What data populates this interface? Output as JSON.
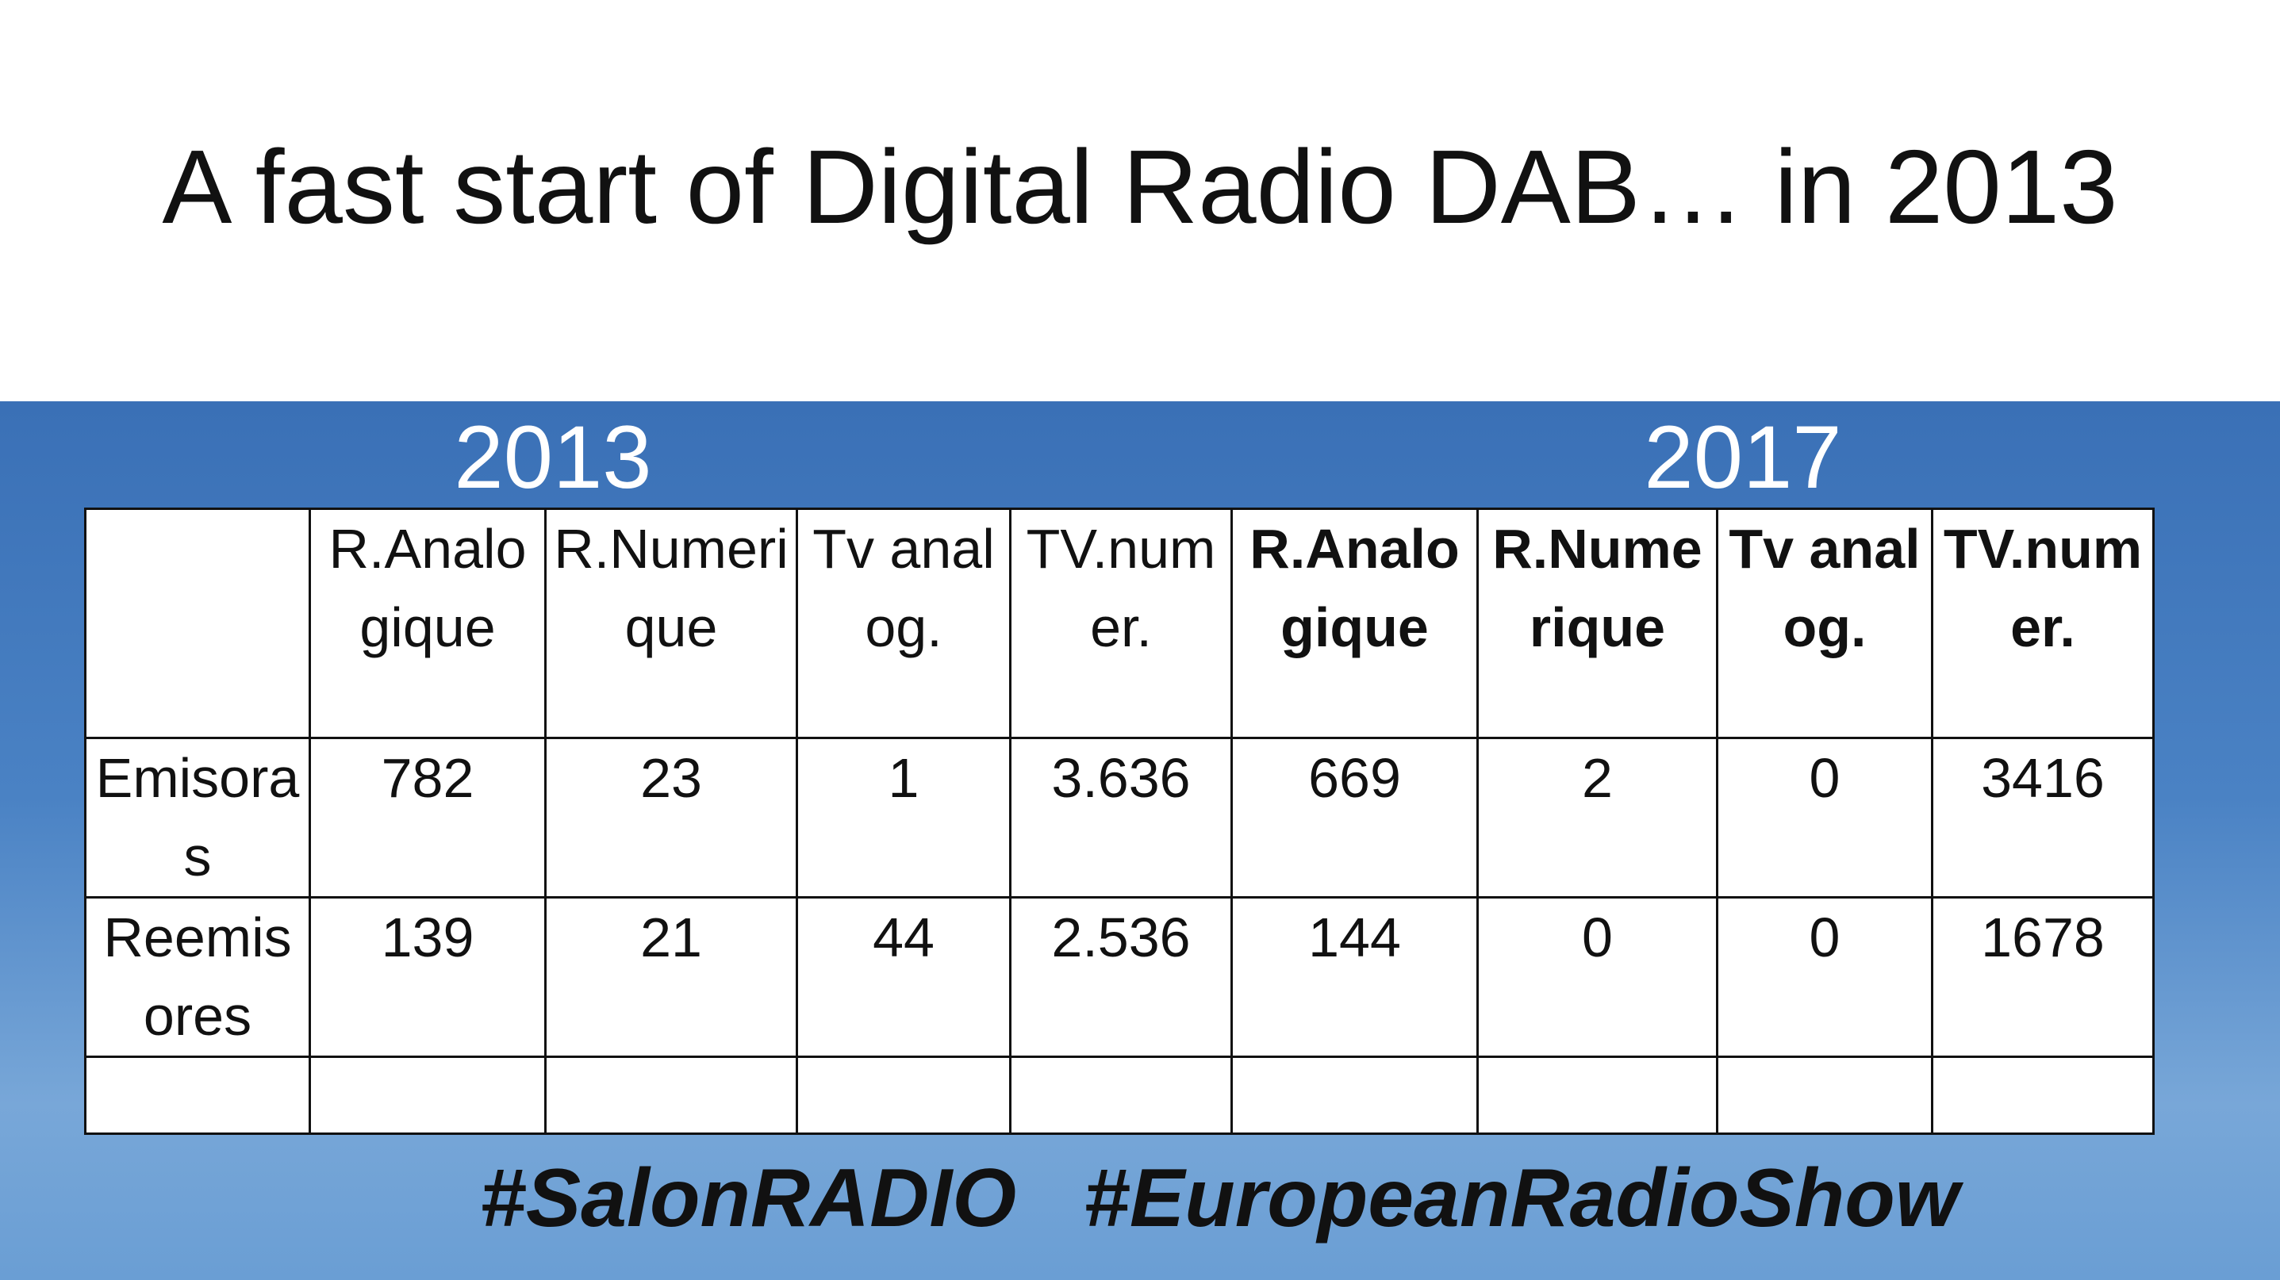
{
  "title": "A fast start of Digital Radio DAB… in 2013",
  "years": [
    "2013",
    "2017"
  ],
  "table": {
    "header": [
      "R.Analogique",
      "R.Numerique",
      "Tv analog.",
      "TV.numer.",
      "R.Analogique",
      "R.Numerique",
      "Tv analog.",
      "TV.numer."
    ],
    "rows": [
      [
        "Emisoras",
        "782",
        "23",
        "1",
        "3.636",
        "669",
        "2",
        "0",
        "3416"
      ],
      [
        "Reemisores",
        "139",
        "21",
        "44",
        "2.536",
        "144",
        "0",
        "0",
        "1678"
      ]
    ]
  },
  "hashtags": [
    "#SalonRADIO",
    "#EuropeanRadioShow"
  ]
}
